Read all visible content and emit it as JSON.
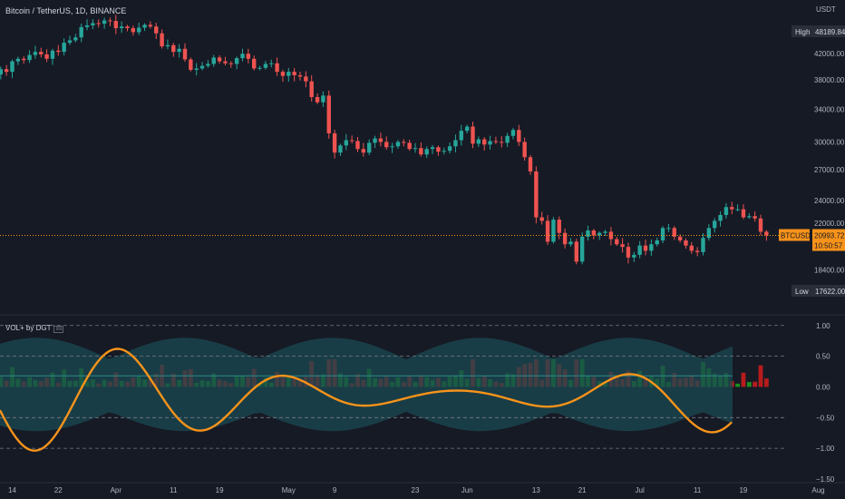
{
  "header": {
    "title": "Bitcoin / TetherUS, 1D, BINANCE",
    "unit": "USDT",
    "indicator_title": "VOL+ by DGT",
    "indicator_tag": "≡≡"
  },
  "price_labels": {
    "high_label": "High",
    "high_value": "48189.84",
    "low_label": "Low",
    "low_value": "17622.00",
    "symbol": "BTCUSDT",
    "last_value": "20993.72",
    "countdown": "10:50:57"
  },
  "colors": {
    "up": "#26a69a",
    "down": "#ef5350",
    "last_line": "#f7931a",
    "osc": "#f7931a",
    "band": "#1b4a52",
    "vol_up": "#1e8e1e",
    "vol_down": "#b71c1c"
  },
  "chart_data": [
    {
      "type": "candlestick",
      "title": "Bitcoin / TetherUS, 1D, BINANCE",
      "y_scale": "log",
      "ylim": [
        16000,
        50500
      ],
      "y_ticks": [
        16800,
        18400,
        20000,
        22000,
        24000,
        27000,
        30000,
        34000,
        38000,
        42000
      ],
      "x_ticks": [
        "14",
        "22",
        "Apr",
        "11",
        "19",
        "May",
        "9",
        "23",
        "Jun",
        "13",
        "21",
        "Jul",
        "11",
        "19",
        "Aug"
      ],
      "x_tick_dates": [
        "2022-03-14",
        "2022-03-22",
        "2022-04-01",
        "2022-04-11",
        "2022-04-19",
        "2022-05-01",
        "2022-05-09",
        "2022-05-23",
        "2022-06-01",
        "2022-06-13",
        "2022-06-21",
        "2022-07-01",
        "2022-07-11",
        "2022-07-19",
        "2022-08-01"
      ],
      "high": 48189.84,
      "low": 17622.0,
      "last": 20993.72,
      "candles": {
        "start_date": "2022-03-07",
        "close": [
          39000,
          38800,
          39400,
          39000,
          38800,
          39600,
          39200,
          40800,
          41200,
          41000,
          41800,
          42300,
          41900,
          41200,
          42500,
          42300,
          43800,
          44200,
          44700,
          46500,
          46800,
          47200,
          47100,
          47700,
          47600,
          46300,
          46600,
          46300,
          45600,
          46400,
          46900,
          46600,
          45400,
          43200,
          43400,
          42300,
          42800,
          41100,
          39500,
          39700,
          40100,
          40400,
          41400,
          40800,
          40500,
          40400,
          41300,
          42000,
          41200,
          39700,
          39800,
          40400,
          40500,
          39200,
          38600,
          39200,
          38700,
          38500,
          37800,
          35600,
          34900,
          35800,
          31000,
          28800,
          29600,
          30200,
          30100,
          29200,
          28800,
          29900,
          30400,
          30000,
          29400,
          29500,
          30000,
          29900,
          29200,
          29300,
          28600,
          29200,
          29400,
          28900,
          29000,
          29500,
          30200,
          31300,
          31800,
          29800,
          30300,
          29700,
          30100,
          30000,
          29900,
          30700,
          31400,
          30000,
          28300,
          26800,
          22500,
          22200,
          20500,
          22300,
          21200,
          20300,
          20500,
          19000,
          20900,
          21400,
          21000,
          21200,
          21300,
          20700,
          20300,
          20100,
          19300,
          19500,
          20200,
          19800,
          20300,
          20600,
          21600,
          21600,
          20900,
          20600,
          20200,
          19800,
          19700,
          20800,
          21600,
          22200,
          22700,
          23400,
          23200,
          23200,
          22500,
          22600,
          22400,
          21300,
          20994
        ]
      }
    },
    {
      "type": "oscillator",
      "title": "VOL+ by DGT",
      "ylim": [
        -1.5,
        1.1
      ],
      "y_ticks": [
        1.0,
        0.5,
        0.0,
        -0.5,
        -1.0,
        -1.5
      ],
      "y_tick_labels": [
        "1.00",
        "0.50",
        "0.00",
        "−0.50",
        "−1.00",
        "−1.50"
      ],
      "dashed_levels": [
        1.0,
        0.5,
        -0.5,
        -1.0
      ]
    }
  ]
}
